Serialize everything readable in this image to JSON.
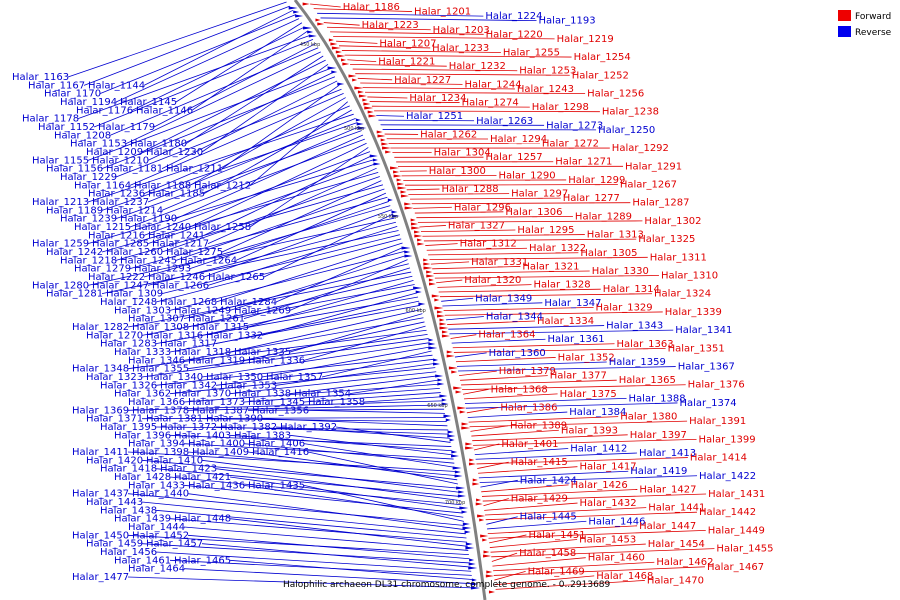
{
  "caption": "Halophilic archaeon DL31 chromosome, complete genome. - 0..2913689",
  "legend": [
    {
      "label": "Forward",
      "color": "#ee0000"
    },
    {
      "label": "Reverse",
      "color": "#0000ee"
    }
  ],
  "tick_labels": [
    "450 kbp",
    "500 kbp",
    "550 kbp",
    "600 kbp",
    "650 kbp",
    "700 kbp"
  ],
  "colors": {
    "forward": "#e00000",
    "reverse": "#0000d0",
    "backbone": "#888888"
  },
  "genes_left": [
    "Halar_1163",
    "Halar_1167",
    "Halar_1144",
    "Halar_1170",
    "Halar_1194",
    "Halar_1145",
    "Halar_1176",
    "Halar_1146",
    "Halar_1178",
    "Halar_1152",
    "Halar_1179",
    "Halar_1208",
    "Halar_1153",
    "Halar_1180",
    "Halar_1209",
    "Halar_1230",
    "Halar_1155",
    "Halar_1210",
    "Halar_1156",
    "Halar_1181",
    "Halar_1211",
    "Halar_1229",
    "Halar_1164",
    "Halar_1188",
    "Halar_1212",
    "Halar_1236",
    "Halar_1185",
    "Halar_1213",
    "Halar_1237",
    "Halar_1189",
    "Halar_1214",
    "Halar_1239",
    "Halar_1190",
    "Halar_1215",
    "Halar_1240",
    "Halar_1258",
    "Halar_1216",
    "Halar_1241",
    "Halar_1259",
    "Halar_1285",
    "Halar_1217",
    "Halar_1242",
    "Halar_1260",
    "Halar_1275",
    "Halar_1218",
    "Halar_1245",
    "Halar_1264",
    "Halar_1279",
    "Halar_1293",
    "Halar_1222",
    "Halar_1246",
    "Halar_1265",
    "Halar_1280",
    "Halar_1247",
    "Halar_1266",
    "Halar_1281",
    "Halar_1309",
    "Halar_1248",
    "Halar_1268",
    "Halar_1284",
    "Halar_1303",
    "Halar_1249",
    "Halar_1269",
    "Halar_1307",
    "Halar_1261",
    "Halar_1282",
    "Halar_1308",
    "Halar_1315",
    "Halar_1270",
    "Halar_1316",
    "Halar_1332",
    "Halar_1283",
    "Halar_1317",
    "Halar_1333",
    "Halar_1318",
    "Halar_1335",
    "Halar_1346",
    "Halar_1319",
    "Halar_1336",
    "Halar_1348",
    "Halar_1355",
    "Halar_1323",
    "Halar_1340",
    "Halar_1350",
    "Halar_1357",
    "Halar_1326",
    "Halar_1342",
    "Halar_1353",
    "Halar_1362",
    "Halar_1370",
    "Halar_1338",
    "Halar_1354",
    "Halar_1366",
    "Halar_1373",
    "Halar_1345",
    "Halar_1358",
    "Halar_1369",
    "Halar_1378",
    "Halar_1387",
    "Halar_1356",
    "Halar_1371",
    "Halar_1381",
    "Halar_1390",
    "Halar_1395",
    "Halar_1372",
    "Halar_1382",
    "Halar_1392",
    "Halar_1396",
    "Halar_1403",
    "Halar_1383",
    "Halar_1394",
    "Halar_1400",
    "Halar_1406",
    "Halar_1411",
    "Halar_1398",
    "Halar_1409",
    "Halar_1416",
    "Halar_1420",
    "Halar_1410",
    "Halar_1418",
    "Halar_1423",
    "Halar_1428",
    "Halar_1421",
    "Halar_1433",
    "Halar_1436",
    "Halar_1435",
    "Halar_1437",
    "Halar_1440",
    "Halar_1443",
    "Halar_1438",
    "Halar_1439",
    "Halar_1448",
    "Halar_1444",
    "Halar_1450",
    "Halar_1452",
    "Halar_1459",
    "Halar_1457",
    "Halar_1456",
    "Halar_1461",
    "Halar_1465",
    "Halar_1464",
    "Halar_1477"
  ],
  "genes_right": [
    {
      "n": "Halar_1186",
      "s": "f"
    },
    {
      "n": "Halar_1201",
      "s": "f"
    },
    {
      "n": "Halar_1224",
      "s": "r"
    },
    {
      "n": "Halar_1193",
      "s": "r"
    },
    {
      "n": "Halar_1223",
      "s": "f"
    },
    {
      "n": "Halar_1203",
      "s": "f"
    },
    {
      "n": "Halar_1220",
      "s": "f"
    },
    {
      "n": "Halar_1219",
      "s": "f"
    },
    {
      "n": "Halar_1207",
      "s": "f"
    },
    {
      "n": "Halar_1233",
      "s": "f"
    },
    {
      "n": "Halar_1255",
      "s": "f"
    },
    {
      "n": "Halar_1254",
      "s": "f"
    },
    {
      "n": "Halar_1221",
      "s": "f"
    },
    {
      "n": "Halar_1232",
      "s": "f"
    },
    {
      "n": "Halar_1253",
      "s": "f"
    },
    {
      "n": "Halar_1252",
      "s": "f"
    },
    {
      "n": "Halar_1227",
      "s": "f"
    },
    {
      "n": "Halar_1244",
      "s": "f"
    },
    {
      "n": "Halar_1243",
      "s": "f"
    },
    {
      "n": "Halar_1256",
      "s": "f"
    },
    {
      "n": "Halar_1234",
      "s": "f"
    },
    {
      "n": "Halar_1274",
      "s": "f"
    },
    {
      "n": "Halar_1298",
      "s": "f"
    },
    {
      "n": "Halar_1238",
      "s": "f"
    },
    {
      "n": "Halar_1251",
      "s": "r"
    },
    {
      "n": "Halar_1263",
      "s": "r"
    },
    {
      "n": "Halar_1273",
      "s": "r"
    },
    {
      "n": "Halar_1250",
      "s": "r"
    },
    {
      "n": "Halar_1262",
      "s": "f"
    },
    {
      "n": "Halar_1294",
      "s": "f"
    },
    {
      "n": "Halar_1272",
      "s": "f"
    },
    {
      "n": "Halar_1292",
      "s": "f"
    },
    {
      "n": "Halar_1304",
      "s": "f"
    },
    {
      "n": "Halar_1257",
      "s": "f"
    },
    {
      "n": "Halar_1271",
      "s": "f"
    },
    {
      "n": "Halar_1291",
      "s": "f"
    },
    {
      "n": "Halar_1300",
      "s": "f"
    },
    {
      "n": "Halar_1290",
      "s": "f"
    },
    {
      "n": "Halar_1299",
      "s": "f"
    },
    {
      "n": "Halar_1267",
      "s": "f"
    },
    {
      "n": "Halar_1288",
      "s": "f"
    },
    {
      "n": "Halar_1297",
      "s": "f"
    },
    {
      "n": "Halar_1277",
      "s": "f"
    },
    {
      "n": "Halar_1287",
      "s": "f"
    },
    {
      "n": "Halar_1296",
      "s": "f"
    },
    {
      "n": "Halar_1306",
      "s": "f"
    },
    {
      "n": "Halar_1289",
      "s": "f"
    },
    {
      "n": "Halar_1302",
      "s": "f"
    },
    {
      "n": "Halar_1327",
      "s": "f"
    },
    {
      "n": "Halar_1295",
      "s": "f"
    },
    {
      "n": "Halar_1313",
      "s": "f"
    },
    {
      "n": "Halar_1325",
      "s": "f"
    },
    {
      "n": "Halar_1312",
      "s": "f"
    },
    {
      "n": "Halar_1322",
      "s": "f"
    },
    {
      "n": "Halar_1305",
      "s": "f"
    },
    {
      "n": "Halar_1311",
      "s": "f"
    },
    {
      "n": "Halar_1331",
      "s": "f"
    },
    {
      "n": "Halar_1321",
      "s": "f"
    },
    {
      "n": "Halar_1330",
      "s": "f"
    },
    {
      "n": "Halar_1310",
      "s": "f"
    },
    {
      "n": "Halar_1320",
      "s": "f"
    },
    {
      "n": "Halar_1328",
      "s": "f"
    },
    {
      "n": "Halar_1314",
      "s": "f"
    },
    {
      "n": "Halar_1324",
      "s": "f"
    },
    {
      "n": "Halar_1349",
      "s": "r"
    },
    {
      "n": "Halar_1347",
      "s": "r"
    },
    {
      "n": "Halar_1329",
      "s": "f"
    },
    {
      "n": "Halar_1339",
      "s": "f"
    },
    {
      "n": "Halar_1344",
      "s": "r"
    },
    {
      "n": "Halar_1334",
      "s": "f"
    },
    {
      "n": "Halar_1343",
      "s": "r"
    },
    {
      "n": "Halar_1341",
      "s": "r"
    },
    {
      "n": "Halar_1364",
      "s": "f"
    },
    {
      "n": "Halar_1361",
      "s": "r"
    },
    {
      "n": "Halar_1363",
      "s": "f"
    },
    {
      "n": "Halar_1351",
      "s": "f"
    },
    {
      "n": "Halar_1360",
      "s": "r"
    },
    {
      "n": "Halar_1352",
      "s": "f"
    },
    {
      "n": "Halar_1359",
      "s": "r"
    },
    {
      "n": "Halar_1367",
      "s": "r"
    },
    {
      "n": "Halar_1379",
      "s": "f"
    },
    {
      "n": "Halar_1377",
      "s": "f"
    },
    {
      "n": "Halar_1365",
      "s": "f"
    },
    {
      "n": "Halar_1376",
      "s": "f"
    },
    {
      "n": "Halar_1368",
      "s": "f"
    },
    {
      "n": "Halar_1375",
      "s": "f"
    },
    {
      "n": "Halar_1388",
      "s": "r"
    },
    {
      "n": "Halar_1374",
      "s": "r"
    },
    {
      "n": "Halar_1386",
      "s": "f"
    },
    {
      "n": "Halar_1384",
      "s": "r"
    },
    {
      "n": "Halar_1380",
      "s": "f"
    },
    {
      "n": "Halar_1391",
      "s": "f"
    },
    {
      "n": "Halar_1389",
      "s": "f"
    },
    {
      "n": "Halar_1393",
      "s": "f"
    },
    {
      "n": "Halar_1397",
      "s": "f"
    },
    {
      "n": "Halar_1399",
      "s": "f"
    },
    {
      "n": "Halar_1401",
      "s": "f"
    },
    {
      "n": "Halar_1412",
      "s": "r"
    },
    {
      "n": "Halar_1413",
      "s": "r"
    },
    {
      "n": "Halar_1414",
      "s": "f"
    },
    {
      "n": "Halar_1415",
      "s": "f"
    },
    {
      "n": "Halar_1417",
      "s": "f"
    },
    {
      "n": "Halar_1419",
      "s": "r"
    },
    {
      "n": "Halar_1422",
      "s": "r"
    },
    {
      "n": "Halar_1424",
      "s": "r"
    },
    {
      "n": "Halar_1426",
      "s": "f"
    },
    {
      "n": "Halar_1427",
      "s": "f"
    },
    {
      "n": "Halar_1431",
      "s": "f"
    },
    {
      "n": "Halar_1429",
      "s": "f"
    },
    {
      "n": "Halar_1432",
      "s": "f"
    },
    {
      "n": "Halar_1441",
      "s": "f"
    },
    {
      "n": "Halar_1442",
      "s": "f"
    },
    {
      "n": "Halar_1445",
      "s": "r"
    },
    {
      "n": "Halar_1446",
      "s": "r"
    },
    {
      "n": "Halar_1447",
      "s": "f"
    },
    {
      "n": "Halar_1449",
      "s": "f"
    },
    {
      "n": "Halar_1451",
      "s": "f"
    },
    {
      "n": "Halar_1453",
      "s": "f"
    },
    {
      "n": "Halar_1454",
      "s": "f"
    },
    {
      "n": "Halar_1455",
      "s": "f"
    },
    {
      "n": "Halar_1458",
      "s": "f"
    },
    {
      "n": "Halar_1460",
      "s": "f"
    },
    {
      "n": "Halar_1462",
      "s": "f"
    },
    {
      "n": "Halar_1467",
      "s": "f"
    },
    {
      "n": "Halar_1469",
      "s": "f"
    },
    {
      "n": "Halar_1468",
      "s": "f"
    },
    {
      "n": "Halar_1470",
      "s": "f"
    }
  ]
}
